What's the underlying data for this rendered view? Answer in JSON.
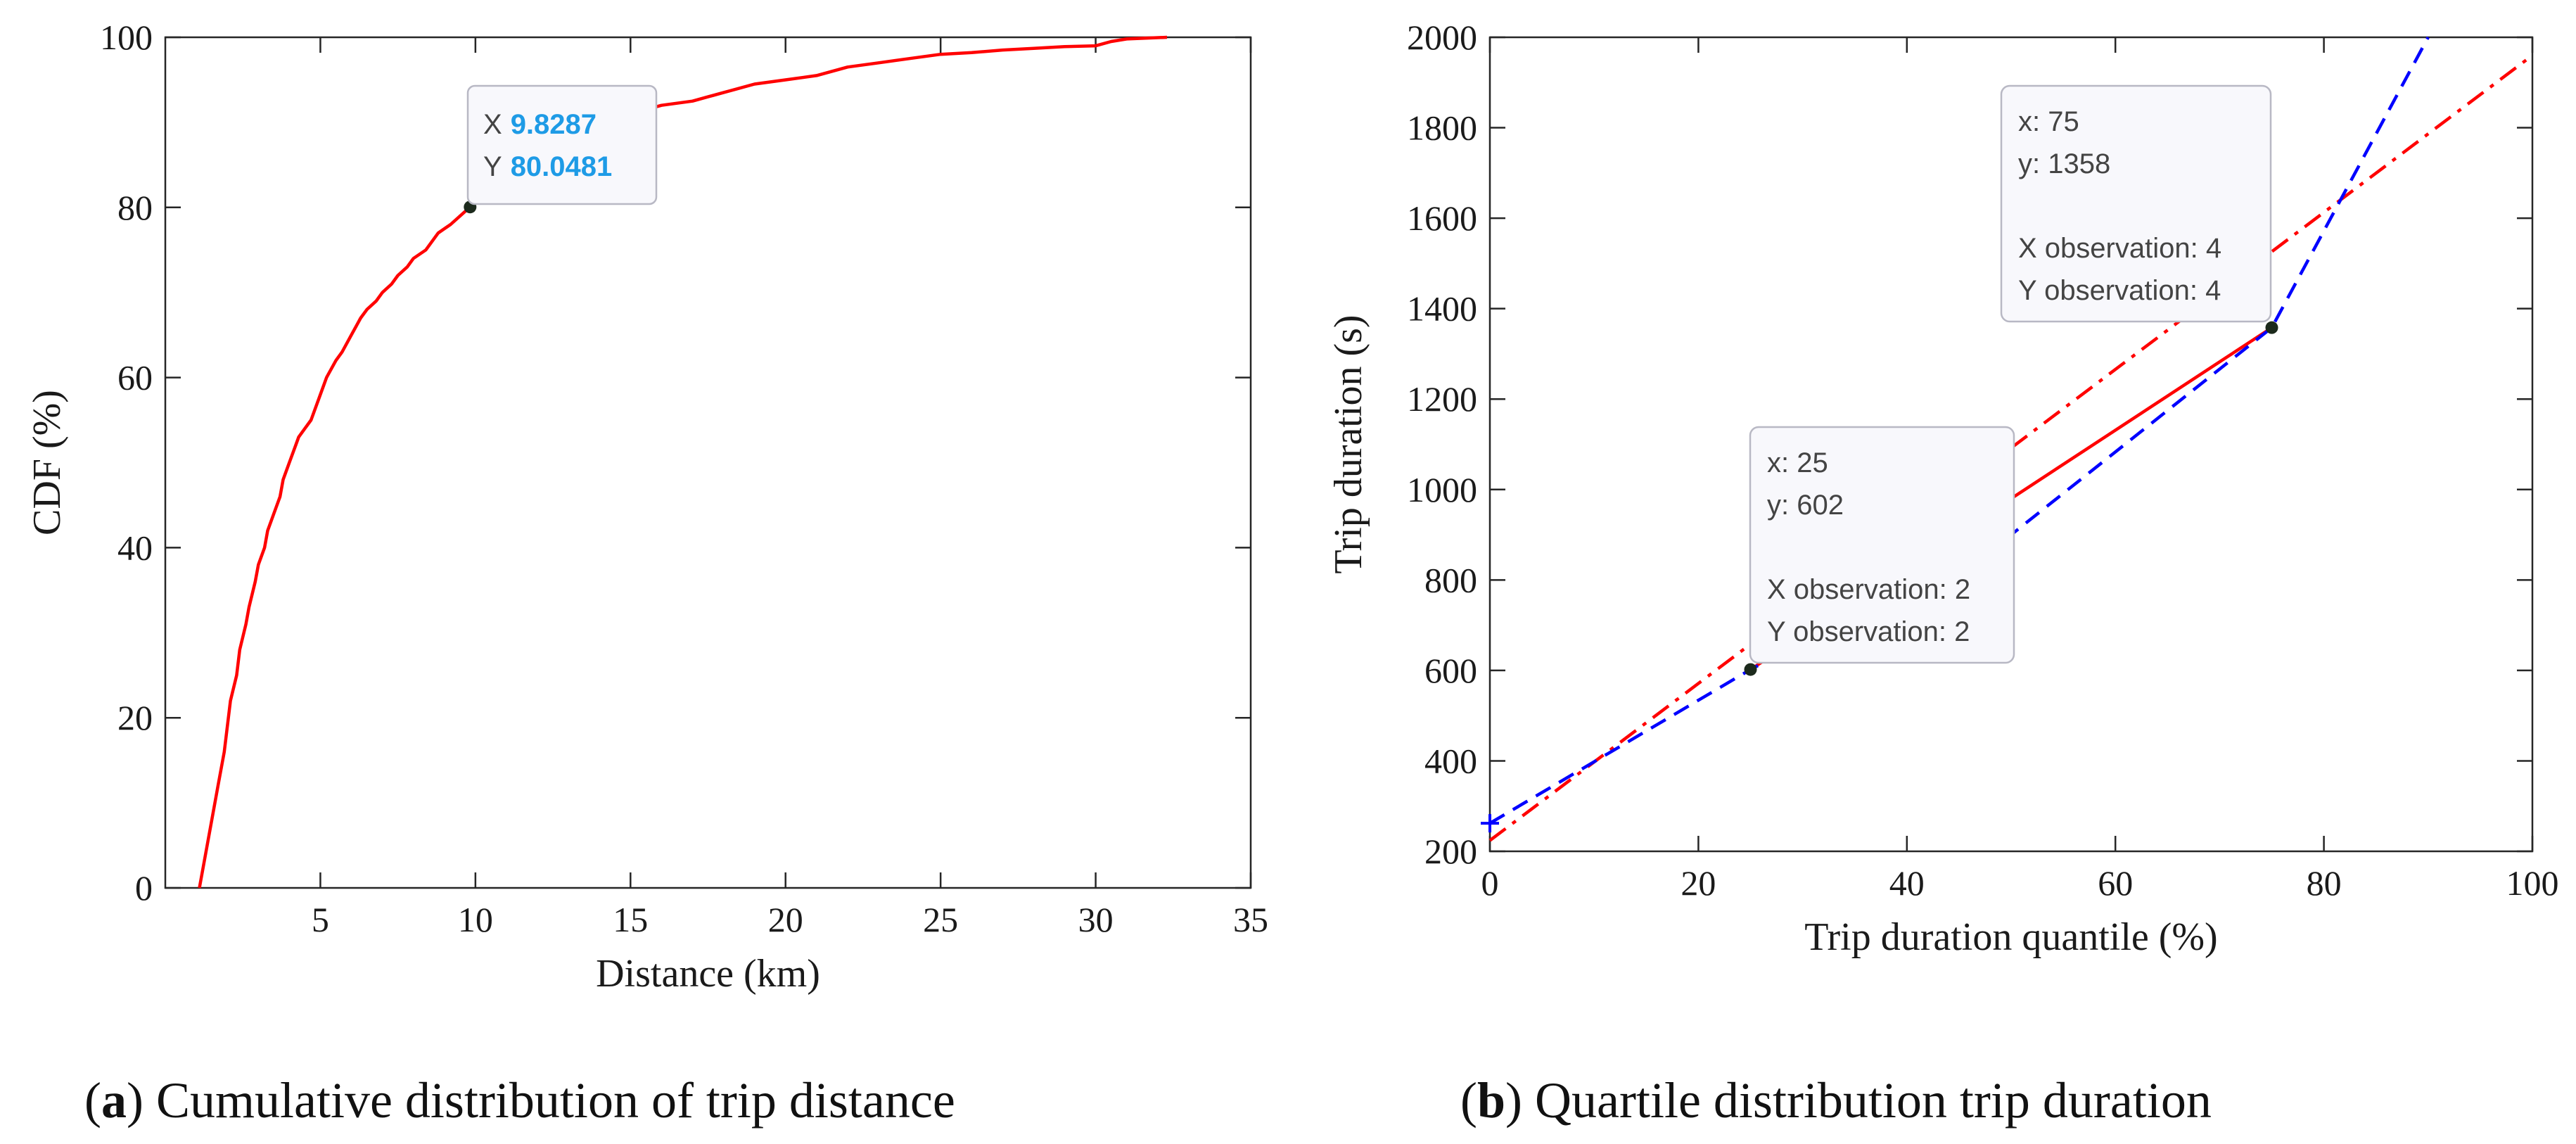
{
  "panels": [
    {
      "caption_letter": "a",
      "caption_text": "Cumulative distribution of trip distance",
      "caption_open": "(",
      "caption_close": ")"
    },
    {
      "caption_letter": "b",
      "caption_text": "Quartile distribution trip duration",
      "caption_open": "(",
      "caption_close": ")"
    }
  ],
  "chart_data": [
    {
      "type": "line",
      "xlabel": "Distance (km)",
      "ylabel": "CDF (%)",
      "xlim": [
        0,
        35
      ],
      "ylim": [
        0,
        100
      ],
      "xticks": [
        5,
        10,
        15,
        20,
        25,
        30,
        35
      ],
      "yticks": [
        0,
        20,
        40,
        60,
        80,
        100
      ],
      "grid": false,
      "series": [
        {
          "color": "#ff0000",
          "x": [
            1.1,
            1.3,
            1.5,
            1.7,
            1.9,
            2.0,
            2.1,
            2.3,
            2.4,
            2.6,
            2.7,
            2.9,
            3.0,
            3.2,
            3.3,
            3.5,
            3.7,
            3.8,
            4.0,
            4.2,
            4.3,
            4.5,
            4.7,
            4.9,
            5.0,
            5.2,
            5.5,
            5.7,
            6.0,
            6.3,
            6.5,
            6.8,
            7.0,
            7.3,
            7.5,
            7.8,
            8.0,
            8.4,
            8.8,
            9.2,
            9.8287,
            10.5,
            11.0,
            11.5,
            12.0,
            12.5,
            13.0,
            14.0,
            15.0,
            16.0,
            17.0,
            17.5,
            18.0,
            19.0,
            20.0,
            21.0,
            22.0,
            23.0,
            24.0,
            25.0,
            26.0,
            27.0,
            28.0,
            29.0,
            30.0,
            30.5,
            31.0,
            32.3
          ],
          "y": [
            0,
            4,
            8,
            12,
            16,
            19,
            22,
            25,
            28,
            31,
            33,
            36,
            38,
            40,
            42,
            44,
            46,
            48,
            50,
            52,
            53,
            54,
            55,
            57,
            58,
            60,
            62,
            63,
            65,
            67,
            68,
            69,
            70,
            71,
            72,
            73,
            74,
            75,
            77,
            78,
            80.0481,
            82,
            84,
            86,
            87,
            88,
            89,
            90,
            91,
            92,
            92.5,
            93,
            93.5,
            94.5,
            95,
            95.5,
            96.5,
            97,
            97.5,
            98,
            98.2,
            98.5,
            98.7,
            98.9,
            99,
            99.5,
            99.8,
            100
          ]
        }
      ],
      "datatip": {
        "x_label": "X",
        "y_label": "Y",
        "x_value": "9.8287",
        "y_value": "80.0481",
        "x": 9.8287,
        "y": 80.0481
      }
    },
    {
      "type": "line",
      "xlabel": "Trip duration quantile (%)",
      "ylabel": "Trip duration (s)",
      "xlim": [
        0,
        100
      ],
      "ylim": [
        200,
        2000
      ],
      "xticks": [
        0,
        20,
        40,
        60,
        80,
        100
      ],
      "yticks": [
        200,
        400,
        600,
        800,
        1000,
        1200,
        1400,
        1600,
        1800,
        2000
      ],
      "grid": false,
      "series": [
        {
          "style": "solid",
          "color": "#ff0000",
          "x": [
            25,
            75
          ],
          "y": [
            602,
            1358
          ]
        },
        {
          "style": "dash-dot",
          "color": "#ff0000",
          "x": [
            0,
            100
          ],
          "y": [
            224,
            1960
          ]
        },
        {
          "style": "dashed",
          "color": "#0000ff",
          "x": [
            0,
            25,
            50,
            75,
            90
          ],
          "y": [
            262,
            602,
            900,
            1358,
            2000
          ]
        }
      ],
      "markers": [
        {
          "x": 25,
          "y": 602
        },
        {
          "x": 75,
          "y": 1358
        },
        {
          "x": 0,
          "y": 262,
          "symbol": "plus",
          "color": "#0000ff"
        }
      ],
      "datatips": [
        {
          "x": 75,
          "y": 1358,
          "lines": [
            "x: 75",
            "y: 1358",
            "",
            "X observation: 4",
            "Y observation: 4"
          ]
        },
        {
          "x": 25,
          "y": 602,
          "lines": [
            "x: 25",
            "y: 602",
            "",
            "X observation: 2",
            "Y observation: 2"
          ]
        }
      ]
    }
  ]
}
